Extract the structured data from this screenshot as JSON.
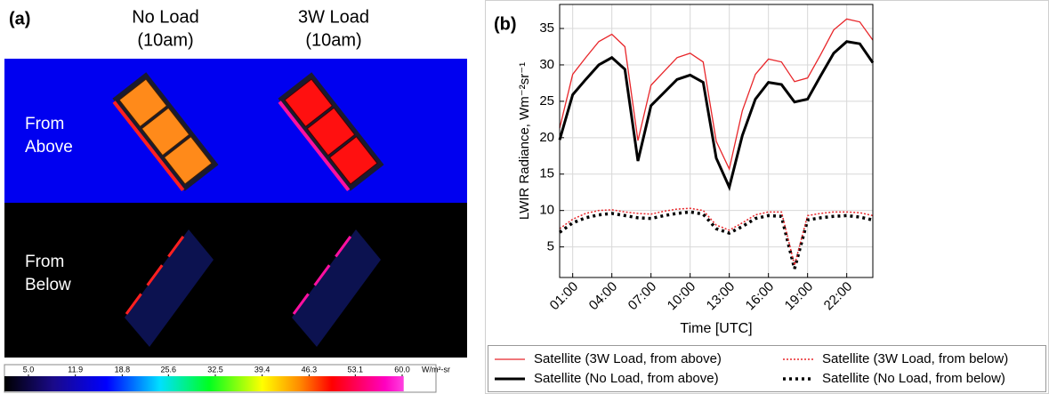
{
  "panel_a": {
    "label": "(a)",
    "columns": [
      [
        "No Load",
        "(10am)"
      ],
      [
        "3W Load",
        "(10am)"
      ]
    ],
    "rows": [
      [
        "From",
        "Above"
      ],
      [
        "From",
        "Below"
      ]
    ],
    "colorbar": {
      "ticks": [
        {
          "value": 5,
          "label": "5.0"
        },
        11.9,
        18.8,
        25.6,
        32.5,
        39.4,
        46.3,
        53.1,
        {
          "value": 60,
          "label": "60.0"
        }
      ],
      "unit": "W/m²-sr"
    }
  },
  "chart_data": {
    "type": "line",
    "label": "(b)",
    "xlabel": "Time [UTC]",
    "ylabel": "LWIR Radiance, Wm⁻²sr⁻¹",
    "x": [
      0,
      1,
      2,
      3,
      4,
      5,
      6,
      7,
      8,
      9,
      10,
      11,
      12,
      13,
      14,
      15,
      16,
      17,
      18,
      19,
      20,
      21,
      22,
      23,
      24
    ],
    "xlim": [
      0,
      24
    ],
    "xticks": [
      {
        "value": 1,
        "label": "01:00"
      },
      {
        "value": 4,
        "label": "04:00"
      },
      {
        "value": 7,
        "label": "07:00"
      },
      {
        "value": 10,
        "label": "10:00"
      },
      {
        "value": 13,
        "label": "13:00"
      },
      {
        "value": 16,
        "label": "16:00"
      },
      {
        "value": 19,
        "label": "19:00"
      },
      {
        "value": 22,
        "label": "22:00"
      }
    ],
    "ylim": [
      0.8,
      38.3
    ],
    "yticks": [
      5,
      10,
      15,
      20,
      25,
      30,
      35
    ],
    "grid": true,
    "legend": "below",
    "series": [
      {
        "name": "Satellite (3W Load, from above)",
        "color": "#e8262a",
        "style": "solid",
        "width": 1.3,
        "values": [
          21.3,
          28.7,
          31.0,
          33.2,
          34.2,
          32.5,
          19.6,
          27.2,
          29.1,
          31.0,
          31.6,
          30.4,
          19.5,
          15.7,
          23.7,
          28.7,
          30.8,
          30.4,
          27.7,
          28.2,
          31.4,
          34.8,
          36.3,
          35.9,
          33.4
        ]
      },
      {
        "name": "Satellite (No Load, from above)",
        "color": "#000000",
        "style": "solid",
        "width": 3,
        "values": [
          19.7,
          25.9,
          28.0,
          30.0,
          31.0,
          29.4,
          16.8,
          24.4,
          26.2,
          28.0,
          28.6,
          27.6,
          17.2,
          13.2,
          20.3,
          25.3,
          27.6,
          27.3,
          24.9,
          25.3,
          28.5,
          31.6,
          33.2,
          32.9,
          30.3
        ]
      },
      {
        "name": "Satellite (3W Load, from below)",
        "color": "#e8262a",
        "style": "dotted",
        "width": 1.5,
        "values": [
          7.5,
          8.8,
          9.6,
          10.0,
          10.1,
          9.8,
          9.6,
          9.5,
          9.9,
          10.2,
          10.3,
          10.0,
          8.0,
          7.3,
          8.3,
          9.4,
          9.8,
          9.8,
          2.5,
          9.3,
          9.6,
          9.8,
          9.8,
          9.7,
          9.3
        ]
      },
      {
        "name": "Satellite (No Load, from below)",
        "color": "#000000",
        "style": "dotted",
        "width": 3.5,
        "values": [
          7.0,
          8.3,
          9.0,
          9.4,
          9.6,
          9.3,
          9.0,
          8.9,
          9.3,
          9.6,
          9.8,
          9.5,
          7.5,
          6.9,
          7.8,
          8.9,
          9.3,
          9.2,
          2.0,
          8.7,
          9.0,
          9.2,
          9.3,
          9.1,
          8.7
        ]
      }
    ]
  }
}
